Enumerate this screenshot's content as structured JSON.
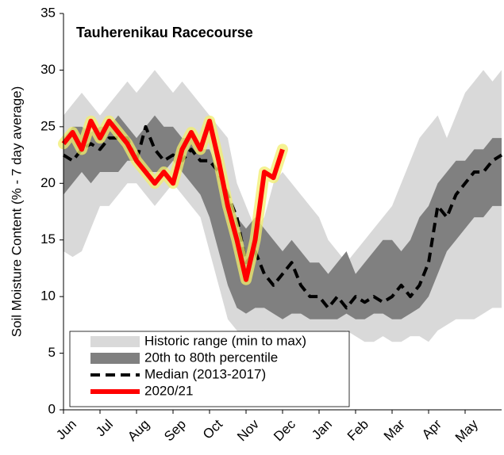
{
  "chart_data": {
    "type": "band-line",
    "title": "Tauherenikau Racecourse",
    "y_label": "Soil Moisture Content (% - 7 day average)",
    "xlim": [
      0,
      12
    ],
    "xticks": [
      {
        "value": 0,
        "label": "Jun"
      },
      {
        "value": 1,
        "label": "Jul"
      },
      {
        "value": 2,
        "label": "Aug"
      },
      {
        "value": 3,
        "label": "Sep"
      },
      {
        "value": 4,
        "label": "Oct"
      },
      {
        "value": 5,
        "label": "Nov"
      },
      {
        "value": 6,
        "label": "Dec"
      },
      {
        "value": 7,
        "label": "Jan"
      },
      {
        "value": 8,
        "label": "Feb"
      },
      {
        "value": 9,
        "label": "Mar"
      },
      {
        "value": 10,
        "label": "Apr"
      },
      {
        "value": 11,
        "label": "May"
      }
    ],
    "ylim": [
      0,
      35
    ],
    "yticks": [
      0,
      5,
      10,
      15,
      20,
      25,
      30,
      35
    ],
    "x": [
      0,
      0.25,
      0.5,
      0.75,
      1,
      1.25,
      1.5,
      1.75,
      2,
      2.25,
      2.5,
      2.75,
      3,
      3.25,
      3.5,
      3.75,
      4,
      4.25,
      4.5,
      4.75,
      5,
      5.25,
      5.5,
      5.75,
      6,
      6.25,
      6.5,
      6.75,
      7,
      7.25,
      7.5,
      7.75,
      8,
      8.25,
      8.5,
      8.75,
      9,
      9.25,
      9.5,
      9.75,
      10,
      10.25,
      10.5,
      10.75,
      11,
      11.25,
      11.5,
      11.75,
      12
    ],
    "series": [
      {
        "name": "Historic range (min to max)",
        "kind": "band",
        "color": "#d9d9d9",
        "high": [
          26,
          27,
          28,
          27,
          26,
          27,
          28,
          29,
          28,
          29,
          30,
          29,
          28,
          29,
          28,
          27,
          26,
          25,
          24,
          20,
          18,
          16,
          17,
          20,
          21,
          20,
          19,
          18,
          17,
          15,
          14,
          13,
          14,
          15,
          16,
          17,
          18,
          20,
          22,
          24,
          25,
          26,
          24,
          26,
          28,
          29,
          30,
          29,
          30
        ],
        "low": [
          14,
          13.5,
          14,
          16,
          18,
          18,
          19,
          20,
          20,
          19,
          18,
          19,
          20,
          19,
          18,
          17,
          14,
          11,
          8,
          7,
          6,
          6.5,
          7,
          6.5,
          6,
          6,
          6,
          6,
          6,
          6,
          6.5,
          7,
          6.5,
          6,
          6,
          6.5,
          6,
          6,
          6.5,
          6.5,
          6,
          7,
          7.5,
          8,
          8,
          8,
          8.5,
          9,
          9
        ]
      },
      {
        "name": "20th to 80th percentile",
        "kind": "band",
        "color": "#808080",
        "high": [
          24,
          25,
          25,
          24.5,
          25,
          25,
          26,
          25,
          24,
          25,
          26,
          25,
          25,
          24,
          24,
          23,
          23,
          21,
          19,
          17,
          16,
          17,
          16,
          15,
          14,
          15,
          14,
          13,
          13,
          12,
          13,
          14,
          12,
          13,
          14,
          15,
          15,
          14,
          15,
          17,
          18,
          20,
          21,
          22,
          22,
          23,
          23,
          24,
          24
        ],
        "low": [
          19,
          20,
          21,
          20,
          21,
          21,
          21,
          22,
          22,
          21,
          21,
          21,
          22,
          21,
          20,
          19,
          17,
          14,
          11,
          9,
          8.5,
          9,
          9,
          8.5,
          8,
          8.5,
          8.5,
          8,
          8,
          8,
          8,
          8.5,
          8,
          8,
          8.5,
          8.5,
          8,
          8,
          8.5,
          9,
          10,
          12,
          14,
          15,
          16,
          17,
          17,
          18,
          18
        ]
      },
      {
        "name": "Median (2013-2017)",
        "kind": "line",
        "color": "#000000",
        "dashed": true,
        "values": [
          22.5,
          22,
          23,
          23.5,
          23,
          24,
          24,
          24,
          22,
          25,
          23,
          22,
          22.5,
          22,
          23,
          22,
          22,
          21,
          19,
          17,
          13,
          14,
          12,
          11,
          12,
          13,
          11,
          10,
          10,
          9,
          10,
          9,
          10,
          9.5,
          10,
          9.5,
          10,
          11,
          10,
          11,
          13,
          18,
          17,
          19,
          20,
          21,
          21,
          22,
          22.5
        ]
      },
      {
        "name": "2020/21",
        "kind": "line",
        "color": "#ff0000",
        "glow": "#f2ee6e",
        "dashed": false,
        "values": [
          23.5,
          24.5,
          23,
          25.5,
          24,
          25.5,
          24.5,
          23.5,
          22,
          21,
          20,
          21,
          20,
          23,
          24.5,
          23,
          25.5,
          22,
          18,
          15,
          11.5,
          15,
          21,
          20.5,
          23,
          null,
          null,
          null,
          null,
          null,
          null,
          null,
          null,
          null,
          null,
          null,
          null,
          null,
          null,
          null,
          null,
          null,
          null,
          null,
          null,
          null,
          null,
          null,
          null
        ]
      }
    ]
  }
}
